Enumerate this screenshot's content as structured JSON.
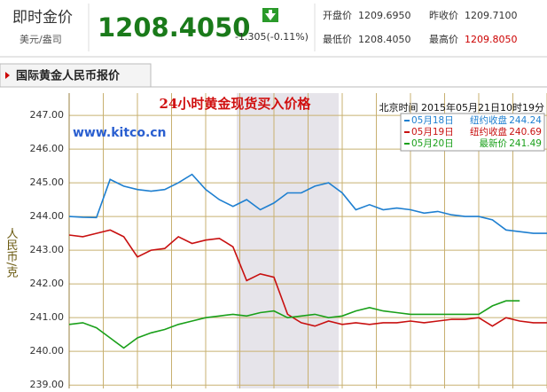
{
  "header": {
    "label": "即时金价",
    "unit": "美元/盎司",
    "price": "1208.4050",
    "change": "-1.305(-0.11%)",
    "stats": [
      {
        "label": "开盘价",
        "value": "1209.6950"
      },
      {
        "label": "昨收价",
        "value": "1209.7100"
      },
      {
        "label": "最低价",
        "value": "1208.4050"
      },
      {
        "label": "最高价",
        "value": "1209.8050"
      }
    ]
  },
  "tab": "国际黄金人民币报价",
  "chart_data": {
    "type": "line",
    "title": "24小时黄金现货买入价格",
    "subtitle": "北京时间 2015年05月21日10时19分",
    "watermark": "www.kitco.cn",
    "y_label": "人民币/克",
    "ylim": [
      238.9,
      247.66
    ],
    "yticks": [
      {
        "value": 247,
        "label": "247.00"
      },
      {
        "value": 246,
        "label": "246.00"
      },
      {
        "value": 245,
        "label": "245.00"
      },
      {
        "value": 244,
        "label": "244.00"
      },
      {
        "value": 243,
        "label": "243.00"
      },
      {
        "value": 242,
        "label": "242.00"
      },
      {
        "value": 241,
        "label": "241.00"
      },
      {
        "value": 240,
        "label": "240.00"
      },
      {
        "value": 239,
        "label": "239.00"
      }
    ],
    "grid": true,
    "series": [
      {
        "name": "05月18日",
        "color": "#1e7fd0",
        "status": "纽约收盘",
        "status_value": 244.24,
        "values": [
          244.0,
          243.98,
          243.97,
          245.1,
          244.9,
          244.8,
          244.75,
          244.8,
          245.0,
          245.25,
          244.8,
          244.5,
          244.3,
          244.5,
          244.2,
          244.4,
          244.7,
          244.7,
          244.9,
          245.0,
          244.7,
          244.2,
          244.35,
          244.2,
          244.25,
          244.2,
          244.1,
          244.15,
          244.05,
          244.0,
          244.0,
          243.9,
          243.6,
          243.55,
          243.5,
          243.5
        ]
      },
      {
        "name": "05月19日",
        "color": "#c81010",
        "status": "纽约收盘",
        "status_value": 240.69,
        "values": [
          243.45,
          243.4,
          243.5,
          243.6,
          243.4,
          242.8,
          243.0,
          243.05,
          243.4,
          243.2,
          243.3,
          243.35,
          243.1,
          242.1,
          242.3,
          242.2,
          241.1,
          240.85,
          240.75,
          240.9,
          240.8,
          240.85,
          240.8,
          240.85,
          240.85,
          240.9,
          240.85,
          240.9,
          240.95,
          240.95,
          241.0,
          240.75,
          241.0,
          240.9,
          240.85,
          240.85
        ]
      },
      {
        "name": "05月20日",
        "color": "#1aa01a",
        "status": "最新价",
        "status_value": 241.49,
        "values": [
          240.8,
          240.85,
          240.7,
          240.4,
          240.1,
          240.4,
          240.55,
          240.65,
          240.8,
          240.9,
          241.0,
          241.05,
          241.1,
          241.05,
          241.15,
          241.2,
          241.0,
          241.05,
          241.1,
          241.0,
          241.05,
          241.2,
          241.3,
          241.2,
          241.15,
          241.1,
          241.1,
          241.1,
          241.1,
          241.1,
          241.1,
          241.35,
          241.5,
          241.5,
          null,
          null
        ]
      }
    ]
  }
}
